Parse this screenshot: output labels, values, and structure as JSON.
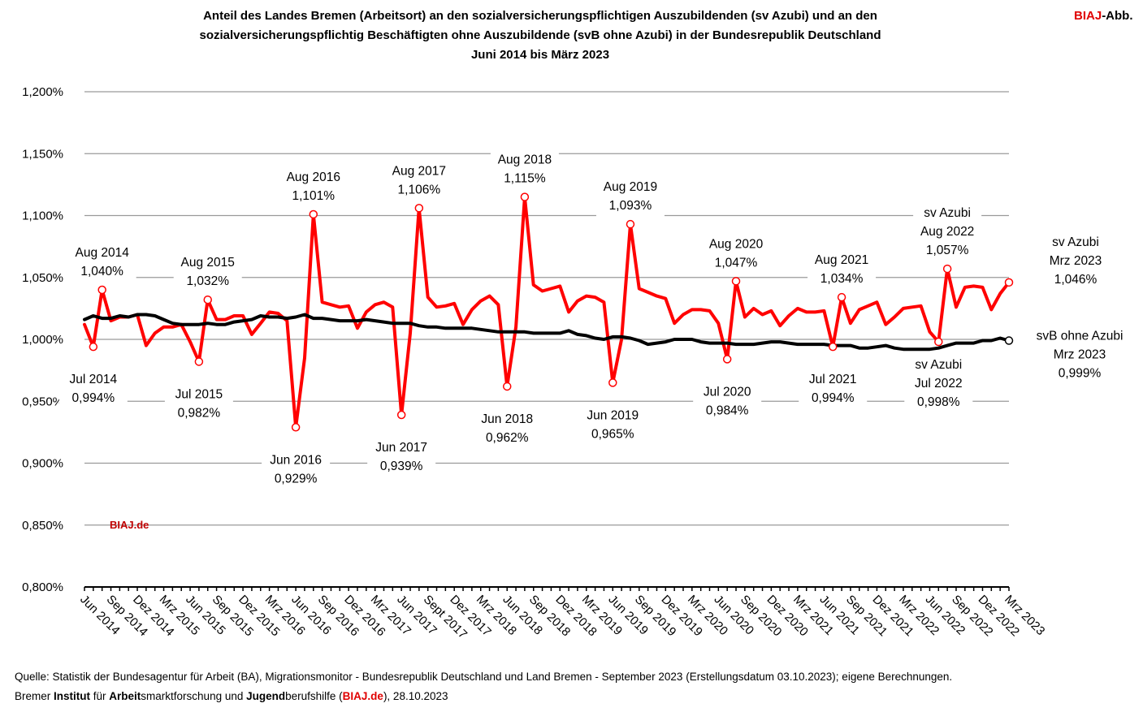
{
  "title_lines": [
    "Anteil des Landes Bremen (Arbeitsort) an den sozialversicherungspflichtigen Auszubildenden (sv Azubi)  und an den",
    "sozialversicherungspflichtig Beschäftigten ohne Auszubildende (svB ohne Azubi) in der Bundesrepublik Deutschland",
    "Juni 2014 bis März 2023"
  ],
  "brand": {
    "red": "BIAJ",
    "rest": "-Abb."
  },
  "watermark": "BIAJ.de",
  "colors": {
    "sv_azubi": "#ff0000",
    "svb": "#000000",
    "grid": "#9a9a9a",
    "brand_red": "#c00000"
  },
  "footer": {
    "line1": "Quelle: Statistik der Bundesagentur für Arbeit (BA), Migrationsmonitor - Bundesrepublik Deutschland und Land Bremen - September 2023  (Erstellungsdatum 03.10.2023); eigene Berechnungen.",
    "line2_parts": [
      {
        "text": "Bremer ",
        "style": "normal"
      },
      {
        "text": "Institut",
        "style": "bold"
      },
      {
        "text": " für ",
        "style": "normal"
      },
      {
        "text": "Arbeit",
        "style": "bold"
      },
      {
        "text": "smarktforschung und ",
        "style": "normal"
      },
      {
        "text": "Jugend",
        "style": "bold"
      },
      {
        "text": "berufshilfe (",
        "style": "normal"
      },
      {
        "text": "BIAJ.de",
        "style": "boldred"
      },
      {
        "text": "), 28.10.2023",
        "style": "normal"
      }
    ]
  },
  "chart_data": {
    "type": "line",
    "ylim": [
      0.8,
      1.2
    ],
    "yticks": [
      "0,800%",
      "0,850%",
      "0,900%",
      "0,950%",
      "1,000%",
      "1,050%",
      "1,100%",
      "1,150%",
      "1,200%"
    ],
    "ytick_values": [
      0.8,
      0.85,
      0.9,
      0.95,
      1.0,
      1.05,
      1.1,
      1.15,
      1.2
    ],
    "grid": true,
    "xtick_labels": [
      "Jun 2014",
      "Sep 2014",
      "Dez 2014",
      "Mrz 2015",
      "Jun 2015",
      "Sep 2015",
      "Dez 2015",
      "Mrz 2016",
      "Jun 2016",
      "Sep 2016",
      "Dez 2016",
      "Mrz 2017",
      "Jun 2017",
      "Sept 2017",
      "Dez 2017",
      "Mrz 2018",
      "Jun 2018",
      "Sep 2018",
      "Dez 2018",
      "Mrz 2019",
      "Jun 2019",
      "Sep 2019",
      "Dez 2019",
      "Mrz 2020",
      "Jun 2020",
      "Sep 2020",
      "Dez 2020",
      "Mrz 2021",
      "Jun 2021",
      "Sep 2021",
      "Dez 2021",
      "Mrz 2022",
      "Jun 2022",
      "Sep 2022",
      "Dez 2022",
      "Mrz 2023"
    ],
    "x_tick_every": 3,
    "series": [
      {
        "name": "sv Azubi",
        "values": [
          1.012,
          0.994,
          1.04,
          1.015,
          1.018,
          1.018,
          1.02,
          0.995,
          1.005,
          1.01,
          1.01,
          1.012,
          0.998,
          0.982,
          1.032,
          1.016,
          1.016,
          1.019,
          1.019,
          1.004,
          1.013,
          1.022,
          1.021,
          1.015,
          0.929,
          0.985,
          1.101,
          1.03,
          1.028,
          1.026,
          1.027,
          1.009,
          1.022,
          1.028,
          1.03,
          1.026,
          0.939,
          1.005,
          1.106,
          1.034,
          1.026,
          1.027,
          1.029,
          1.012,
          1.024,
          1.031,
          1.035,
          1.028,
          0.962,
          1.01,
          1.115,
          1.044,
          1.039,
          1.041,
          1.043,
          1.022,
          1.031,
          1.035,
          1.034,
          1.03,
          0.965,
          1.0,
          1.093,
          1.041,
          1.038,
          1.035,
          1.033,
          1.013,
          1.02,
          1.024,
          1.024,
          1.023,
          1.013,
          0.984,
          1.047,
          1.018,
          1.025,
          1.02,
          1.023,
          1.011,
          1.019,
          1.025,
          1.022,
          1.022,
          1.023,
          0.994,
          1.034,
          1.013,
          1.024,
          1.027,
          1.03,
          1.012,
          1.018,
          1.025,
          1.026,
          1.027,
          1.006,
          0.998,
          1.057,
          1.026,
          1.042,
          1.043,
          1.042,
          1.024,
          1.037,
          1.046
        ]
      },
      {
        "name": "svB ohne Azubi",
        "values": [
          1.016,
          1.019,
          1.017,
          1.017,
          1.019,
          1.018,
          1.02,
          1.02,
          1.019,
          1.016,
          1.013,
          1.012,
          1.012,
          1.012,
          1.013,
          1.012,
          1.012,
          1.014,
          1.015,
          1.016,
          1.019,
          1.018,
          1.018,
          1.017,
          1.018,
          1.02,
          1.017,
          1.017,
          1.016,
          1.015,
          1.015,
          1.015,
          1.016,
          1.015,
          1.014,
          1.013,
          1.013,
          1.013,
          1.011,
          1.01,
          1.01,
          1.009,
          1.009,
          1.009,
          1.009,
          1.008,
          1.007,
          1.006,
          1.006,
          1.006,
          1.006,
          1.005,
          1.005,
          1.005,
          1.005,
          1.007,
          1.004,
          1.003,
          1.001,
          1.0,
          1.002,
          1.002,
          1.001,
          0.999,
          0.996,
          0.997,
          0.998,
          1.0,
          1.0,
          1.0,
          0.998,
          0.997,
          0.997,
          0.997,
          0.996,
          0.996,
          0.996,
          0.997,
          0.998,
          0.998,
          0.997,
          0.996,
          0.996,
          0.996,
          0.996,
          0.995,
          0.995,
          0.995,
          0.993,
          0.993,
          0.994,
          0.995,
          0.993,
          0.992,
          0.992,
          0.992,
          0.992,
          0.993,
          0.995,
          0.997,
          0.997,
          0.997,
          0.999,
          0.999,
          1.001,
          0.999
        ]
      }
    ],
    "annotations": [
      {
        "series": 0,
        "index": 2,
        "lines": [
          "Aug 2014",
          "1,040%"
        ],
        "pos": "above"
      },
      {
        "series": 0,
        "index": 1,
        "lines": [
          "Jul 2014",
          "0,994%"
        ],
        "pos": "below"
      },
      {
        "series": 0,
        "index": 14,
        "lines": [
          "Aug 2015",
          "1,032%"
        ],
        "pos": "above"
      },
      {
        "series": 0,
        "index": 13,
        "lines": [
          "Jul 2015",
          "0,982%"
        ],
        "pos": "below"
      },
      {
        "series": 0,
        "index": 26,
        "lines": [
          "Aug 2016",
          "1,101%"
        ],
        "pos": "above"
      },
      {
        "series": 0,
        "index": 24,
        "lines": [
          "Jun 2016",
          "0,929%"
        ],
        "pos": "below"
      },
      {
        "series": 0,
        "index": 38,
        "lines": [
          "Aug 2017",
          "1,106%"
        ],
        "pos": "above"
      },
      {
        "series": 0,
        "index": 36,
        "lines": [
          "Jun 2017",
          "0,939%"
        ],
        "pos": "below"
      },
      {
        "series": 0,
        "index": 50,
        "lines": [
          "Aug 2018",
          "1,115%"
        ],
        "pos": "above"
      },
      {
        "series": 0,
        "index": 48,
        "lines": [
          "Jun 2018",
          "0,962%"
        ],
        "pos": "below"
      },
      {
        "series": 0,
        "index": 62,
        "lines": [
          "Aug 2019",
          "1,093%"
        ],
        "pos": "above"
      },
      {
        "series": 0,
        "index": 60,
        "lines": [
          "Jun 2019",
          "0,965%"
        ],
        "pos": "below"
      },
      {
        "series": 0,
        "index": 74,
        "lines": [
          "Aug 2020",
          "1,047%"
        ],
        "pos": "above"
      },
      {
        "series": 0,
        "index": 73,
        "lines": [
          "Jul 2020",
          "0,984%"
        ],
        "pos": "below"
      },
      {
        "series": 0,
        "index": 86,
        "lines": [
          "Aug 2021",
          "1,034%"
        ],
        "pos": "above"
      },
      {
        "series": 0,
        "index": 85,
        "lines": [
          "Jul 2021",
          "0,994%"
        ],
        "pos": "below"
      },
      {
        "series": 0,
        "index": 98,
        "lines": [
          "sv Azubi",
          "Aug 2022",
          "1,057%"
        ],
        "pos": "above"
      },
      {
        "series": 0,
        "index": 97,
        "lines": [
          "sv Azubi",
          "Jul 2022",
          "0,998%"
        ],
        "pos": "below"
      },
      {
        "series": 0,
        "index": 105,
        "lines": [
          "sv Azubi",
          "Mrz 2023",
          "1,046%"
        ],
        "pos": "right-upper"
      },
      {
        "series": 1,
        "index": 105,
        "lines": [
          "svB ohne Azubi",
          "Mrz 2023",
          "0,999%"
        ],
        "pos": "right-lower"
      }
    ]
  }
}
